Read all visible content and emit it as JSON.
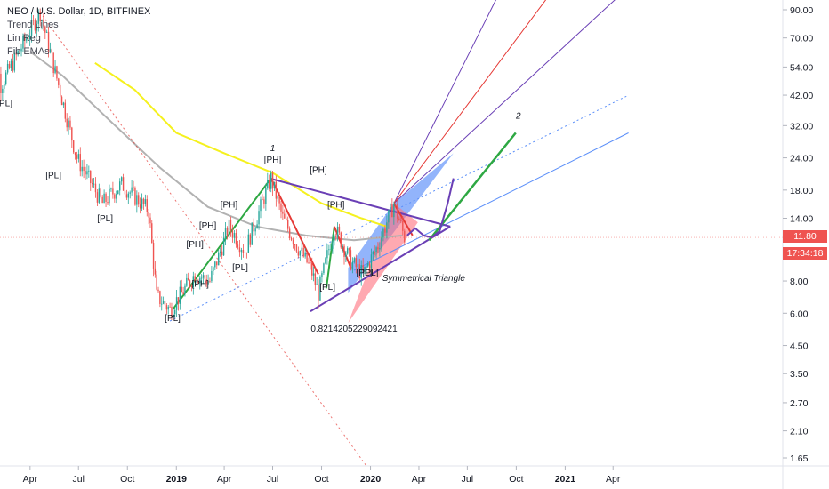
{
  "header": {
    "symbol_line": "NEO / U.S. Dollar, 1D, BITFINEX",
    "indicators": [
      "Trend Lines",
      "Lin Reg",
      "Fib EMAs"
    ]
  },
  "price_scale": {
    "ticks": [
      "90.00",
      "70.00",
      "54.00",
      "42.00",
      "32.00",
      "24.00",
      "18.00",
      "14.00",
      "11.80",
      "8.00",
      "6.00",
      "4.50",
      "3.50",
      "2.70",
      "2.10",
      "1.65"
    ],
    "current_price": "11.80",
    "countdown": "17:34:18",
    "current_color": "#ef5350",
    "countdown_color": "#ef5350"
  },
  "time_scale": {
    "ticks": [
      {
        "label": "Apr",
        "bold": false
      },
      {
        "label": "Jul",
        "bold": false
      },
      {
        "label": "Oct",
        "bold": false
      },
      {
        "label": "2019",
        "bold": true
      },
      {
        "label": "Apr",
        "bold": false
      },
      {
        "label": "Jul",
        "bold": false
      },
      {
        "label": "Oct",
        "bold": false
      },
      {
        "label": "2020",
        "bold": true
      },
      {
        "label": "Apr",
        "bold": false
      },
      {
        "label": "Jul",
        "bold": false
      },
      {
        "label": "Oct",
        "bold": false
      },
      {
        "label": "2021",
        "bold": true
      },
      {
        "label": "Apr",
        "bold": false
      }
    ]
  },
  "annotations": {
    "pivots": [
      "[PL]",
      "[PL]",
      "[PL]",
      "[PL]",
      "[PL]",
      "[PH]",
      "[PL]",
      "[PH]",
      "[PL]",
      "[PH]",
      "[PH]",
      "[PH]",
      "[PH]",
      "[PL]",
      "[PL]",
      "[PH]"
    ],
    "wave_1": "1",
    "wave_2": "2",
    "ratio": "0.8214205229092421",
    "pattern": "Symmetrical Triangle"
  },
  "colors": {
    "up_candle": "#26a69a",
    "down_candle": "#ef5350",
    "ema_yellow": "#f5f11e",
    "ema_gray": "#b2b2b2",
    "trend_purple": "#6a3fb5",
    "trend_green": "#2ea843",
    "trend_red": "#e53935",
    "fan_blue": "#5b8ff9",
    "fan_pink": "#ff6f7d",
    "triangle_text": "#2ea843",
    "ratio_text": "#1a237e"
  },
  "chart_data": {
    "type": "candlestick",
    "x_axis": "time (Jan 2018 – Apr 2021)",
    "y_scale": "log",
    "ylim": [
      1.5,
      100
    ],
    "swing_points": [
      {
        "date": "2018-01-10",
        "price": 95
      },
      {
        "date": "2018-02-05",
        "price": 46
      },
      {
        "date": "2018-04-20",
        "price": 88
      },
      {
        "date": "2018-06-28",
        "price": 24
      },
      {
        "date": "2018-08-15",
        "price": 16
      },
      {
        "date": "2018-09-20",
        "price": 19
      },
      {
        "date": "2018-11-10",
        "price": 15
      },
      {
        "date": "2018-11-25",
        "price": 7
      },
      {
        "date": "2018-12-20",
        "price": 6.2
      },
      {
        "date": "2019-02-05",
        "price": 8.5
      },
      {
        "date": "2019-03-05",
        "price": 8
      },
      {
        "date": "2019-04-10",
        "price": 13
      },
      {
        "date": "2019-05-10",
        "price": 10.5
      },
      {
        "date": "2019-06-28",
        "price": 20
      },
      {
        "date": "2019-07-20",
        "price": 14
      },
      {
        "date": "2019-08-15",
        "price": 11
      },
      {
        "date": "2019-09-10",
        "price": 9
      },
      {
        "date": "2019-09-25",
        "price": 7.2
      },
      {
        "date": "2019-10-25",
        "price": 13
      },
      {
        "date": "2019-11-25",
        "price": 9.5
      },
      {
        "date": "2019-12-18",
        "price": 8.5
      },
      {
        "date": "2020-01-15",
        "price": 11
      },
      {
        "date": "2020-02-14",
        "price": 16
      },
      {
        "date": "2020-03-05",
        "price": 11.8
      }
    ],
    "current_price": 11.8,
    "projection_wave_2_target": 30
  }
}
